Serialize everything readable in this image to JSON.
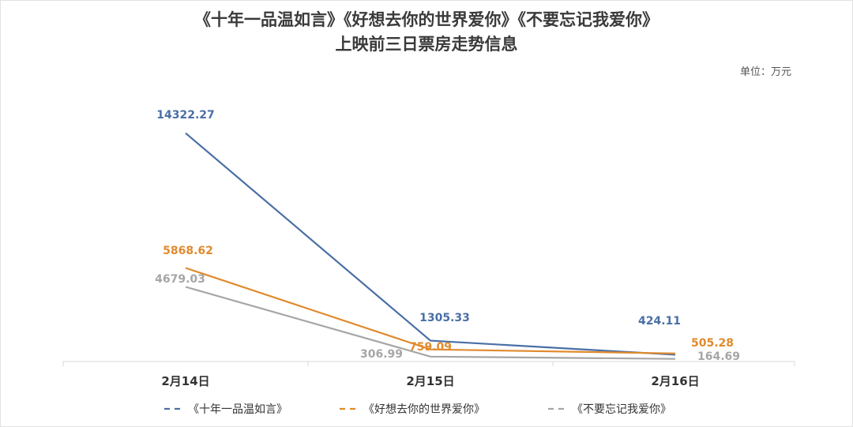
{
  "chart_data": {
    "type": "line",
    "title": "《十年一品温如言》《好想去你的世界爱你》《不要忘记我爱你》",
    "subtitle": "上映前三日票房走势信息",
    "unit_label": "单位：万元",
    "categories": [
      "2月14日",
      "2月15日",
      "2月16日"
    ],
    "ylim": [
      0,
      15000
    ],
    "grid": false,
    "legend_position": "bottom",
    "series": [
      {
        "name": "《十年一品温如言》",
        "values": [
          14322.27,
          1305.33,
          424.11
        ],
        "labels": [
          "14322.27",
          "1305.33",
          "424.11"
        ],
        "color": "#4a6fa5"
      },
      {
        "name": "《好想去你的世界爱你》",
        "values": [
          5868.62,
          759.09,
          505.28
        ],
        "labels": [
          "5868.62",
          "759.09",
          "505.28"
        ],
        "color": "#e08a2e"
      },
      {
        "name": "《不要忘记我爱你》",
        "values": [
          4679.03,
          306.99,
          164.69
        ],
        "labels": [
          "4679.03",
          "306.99",
          "164.69"
        ],
        "color": "#a6a6a6"
      }
    ]
  }
}
